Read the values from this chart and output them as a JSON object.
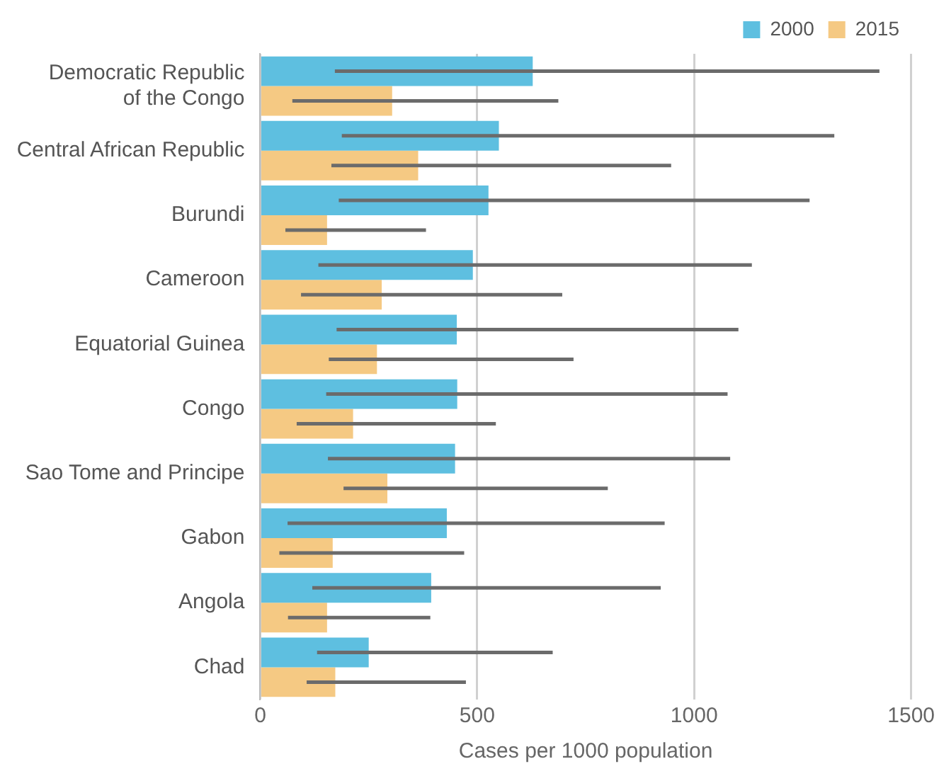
{
  "chart_data": {
    "type": "bar",
    "orientation": "horizontal",
    "xlabel": "Cases per 1000 population",
    "categories": [
      "Democratic Republic of the Congo",
      "Central African Republic",
      "Burundi",
      "Cameroon",
      "Equatorial Guinea",
      "Congo",
      "Sao Tome and Principe",
      "Gabon",
      "Angola",
      "Chad"
    ],
    "series": [
      {
        "name": "2000",
        "color": "#5ebfe0",
        "values": [
          628,
          550,
          526,
          490,
          453,
          454,
          449,
          430,
          394,
          250
        ],
        "errors": [
          [
            172,
            1427
          ],
          [
            188,
            1323
          ],
          [
            181,
            1266
          ],
          [
            134,
            1133
          ],
          [
            176,
            1102
          ],
          [
            152,
            1077
          ],
          [
            156,
            1083
          ],
          [
            63,
            932
          ],
          [
            120,
            923
          ],
          [
            131,
            674
          ]
        ]
      },
      {
        "name": "2015",
        "color": "#f5c983",
        "values": [
          304,
          364,
          154,
          280,
          269,
          214,
          293,
          167,
          154,
          173
        ],
        "errors": [
          [
            74,
            687
          ],
          [
            164,
            947
          ],
          [
            58,
            382
          ],
          [
            94,
            696
          ],
          [
            158,
            722
          ],
          [
            84,
            543
          ],
          [
            192,
            801
          ],
          [
            44,
            470
          ],
          [
            64,
            392
          ],
          [
            107,
            474
          ]
        ]
      }
    ],
    "xlim": [
      0,
      1500
    ],
    "xticks": [
      0,
      500,
      1000,
      1500
    ],
    "grid": "x",
    "legend": "top right"
  }
}
